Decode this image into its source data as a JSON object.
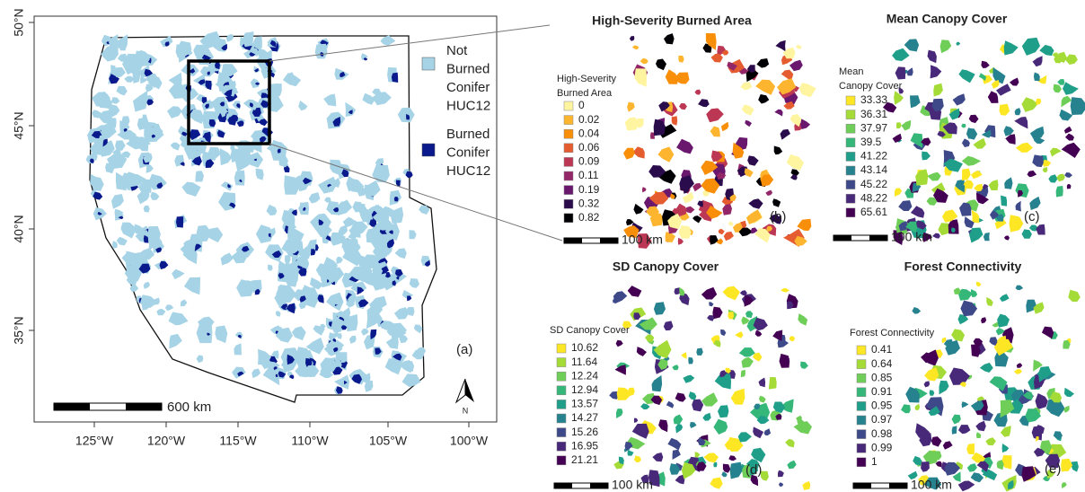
{
  "overview": {
    "x_ticks": [
      "125°W",
      "120°W",
      "115°W",
      "110°W",
      "105°W",
      "100°W"
    ],
    "y_ticks": [
      "50°N",
      "45°N",
      "40°N",
      "35°N"
    ],
    "legend": [
      {
        "lines": [
          "Not",
          "Burned",
          "Conifer",
          "HUC12"
        ],
        "color": "#a6d3e6"
      },
      {
        "lines": [
          "Burned",
          "Conifer",
          "HUC12"
        ],
        "color": "#0a1a8c"
      }
    ],
    "scale": "600 km",
    "label": "(a)",
    "north": "N"
  },
  "panels": [
    {
      "title": "High-Severity Burned Area",
      "legend_title": [
        "High-Severity",
        "Burned Area"
      ],
      "entries": [
        "0",
        "0.02",
        "0.04",
        "0.06",
        "0.09",
        "0.11",
        "0.19",
        "0.32",
        "0.82"
      ],
      "colors": [
        "#fff5a0",
        "#fdb52f",
        "#f98e09",
        "#e55c30",
        "#bc3754",
        "#932667",
        "#6a176e",
        "#2a0b4b",
        "#000004"
      ],
      "scale": "100 km",
      "label": "(b)"
    },
    {
      "title": "Mean Canopy Cover",
      "legend_title": [
        "Mean",
        "Canopy Cover"
      ],
      "entries": [
        "33.33",
        "36.31",
        "37.97",
        "39.5",
        "41.22",
        "43.14",
        "45.22",
        "48.22",
        "65.61"
      ],
      "colors": [
        "#fde725",
        "#a5db36",
        "#6ece58",
        "#35b779",
        "#1f9e89",
        "#26828e",
        "#3e4989",
        "#482878",
        "#440154"
      ],
      "scale": "100 km",
      "label": "(c)"
    },
    {
      "title": "SD Canopy Cover",
      "legend_title": [
        "SD Canopy Cover"
      ],
      "entries": [
        "10.62",
        "11.64",
        "12.24",
        "12.94",
        "13.57",
        "14.27",
        "15.26",
        "16.95",
        "21.21"
      ],
      "colors": [
        "#fde725",
        "#a5db36",
        "#6ece58",
        "#35b779",
        "#1f9e89",
        "#26828e",
        "#3e4989",
        "#482878",
        "#440154"
      ],
      "scale": "100 km",
      "label": "(d)"
    },
    {
      "title": "Forest Connectivity",
      "legend_title": [
        "Forest Connectivity"
      ],
      "entries": [
        "0.41",
        "0.64",
        "0.85",
        "0.91",
        "0.95",
        "0.97",
        "0.98",
        "0.99",
        "1"
      ],
      "colors": [
        "#fde725",
        "#a5db36",
        "#6ece58",
        "#35b779",
        "#1f9e89",
        "#26828e",
        "#3e4989",
        "#482878",
        "#440154"
      ],
      "scale": "100 km",
      "label": "(e)"
    }
  ]
}
